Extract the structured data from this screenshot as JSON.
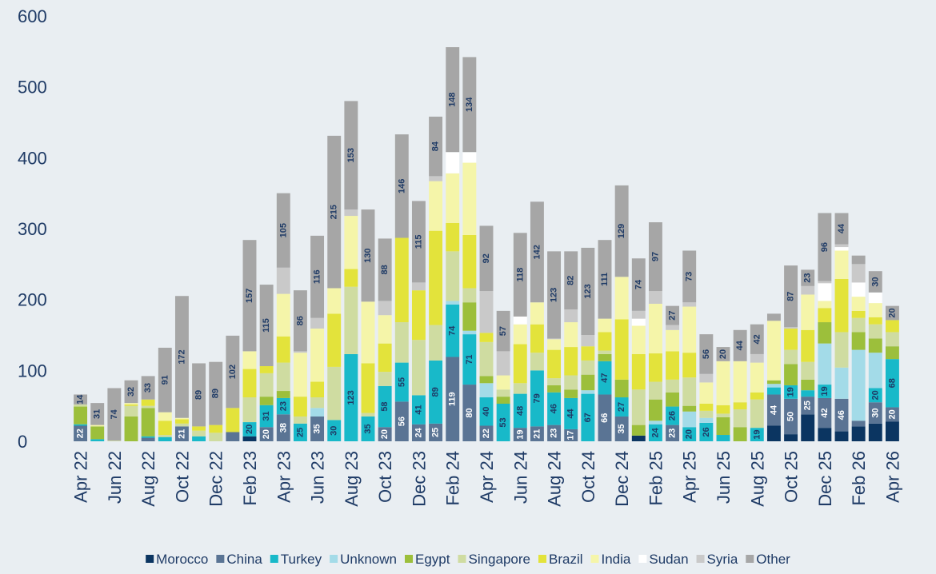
{
  "chart_data": {
    "type": "stacked_bar",
    "categories": [
      "Apr 22",
      null,
      "Jun 22",
      null,
      "Aug 22",
      null,
      "Oct 22",
      null,
      "Dec 22",
      null,
      "Feb 23",
      null,
      "Apr 23",
      null,
      "Jun 23",
      null,
      "Aug 23",
      null,
      "Oct 23",
      null,
      "Dec 23",
      null,
      "Feb 24",
      null,
      "Apr 24",
      null,
      "Jun 24",
      null,
      "Aug 24",
      null,
      "Oct 24",
      null,
      "Dec 24",
      null,
      "Feb 25",
      null,
      "Apr 25",
      null,
      "Jun 25",
      null,
      "Aug 25",
      null,
      "Oct 25",
      null,
      "Dec 25",
      null,
      "Feb 26",
      null,
      "Apr 26"
    ],
    "ylim": [
      0,
      600
    ],
    "yticks": [
      0,
      100,
      200,
      300,
      400,
      500,
      600
    ],
    "grid": false,
    "legend": "bottom",
    "series": [
      {
        "name": "Morocco",
        "color": "#0b3561",
        "data_labels": false,
        "values": [
          0,
          0,
          0,
          0,
          0,
          0,
          0,
          0,
          0,
          0,
          7,
          0,
          0,
          0,
          0,
          0,
          0,
          0,
          0,
          0,
          0,
          0,
          0,
          0,
          0,
          0,
          0,
          0,
          0,
          0,
          0,
          0,
          0,
          8,
          0,
          0,
          0,
          0,
          0,
          0,
          0,
          22,
          10,
          38,
          19,
          14,
          21,
          25,
          28
        ]
      },
      {
        "name": "China",
        "color": "#5a7494",
        "data_labels": true,
        "values": [
          22,
          0,
          0,
          0,
          5,
          0,
          21,
          0,
          0,
          13,
          0,
          20,
          38,
          0,
          35,
          0,
          0,
          0,
          20,
          56,
          24,
          25,
          119,
          80,
          22,
          0,
          19,
          21,
          23,
          17,
          0,
          66,
          35,
          0,
          0,
          23,
          0,
          0,
          0,
          0,
          0,
          44,
          50,
          25,
          42,
          46,
          8,
          30,
          20
        ]
      },
      {
        "name": "Turkey",
        "color": "#18b9c9",
        "data_labels": true,
        "values": [
          2,
          3,
          0,
          0,
          2,
          6,
          0,
          7,
          0,
          0,
          20,
          31,
          23,
          25,
          0,
          30,
          123,
          35,
          58,
          55,
          41,
          89,
          74,
          71,
          40,
          53,
          48,
          79,
          46,
          44,
          67,
          47,
          27,
          0,
          24,
          26,
          20,
          26,
          9,
          0,
          19,
          10,
          19,
          9,
          19,
          0,
          0,
          20,
          68
        ]
      },
      {
        "name": "Unknown",
        "color": "#a3dbe8",
        "data_labels": false,
        "values": [
          0,
          0,
          0,
          0,
          0,
          0,
          0,
          0,
          0,
          0,
          0,
          0,
          0,
          0,
          12,
          0,
          0,
          0,
          0,
          0,
          0,
          0,
          5,
          5,
          20,
          0,
          0,
          0,
          0,
          0,
          5,
          0,
          0,
          0,
          5,
          0,
          22,
          7,
          0,
          0,
          0,
          5,
          0,
          0,
          58,
          44,
          100,
          50,
          0
        ]
      },
      {
        "name": "Egypt",
        "color": "#9cbf3b",
        "data_labels": false,
        "values": [
          25,
          18,
          0,
          35,
          40,
          0,
          0,
          0,
          0,
          0,
          0,
          12,
          10,
          0,
          0,
          0,
          0,
          0,
          0,
          0,
          0,
          0,
          0,
          40,
          10,
          10,
          0,
          0,
          10,
          12,
          22,
          10,
          25,
          15,
          30,
          20,
          8,
          0,
          25,
          20,
          0,
          5,
          30,
          15,
          30,
          0,
          25,
          20,
          18
        ]
      },
      {
        "name": "Singapore",
        "color": "#cfdca1",
        "data_labels": false,
        "values": [
          3,
          0,
          1,
          15,
          3,
          3,
          4,
          8,
          12,
          0,
          35,
          33,
          40,
          10,
          15,
          75,
          95,
          5,
          20,
          57,
          78,
          50,
          70,
          20,
          48,
          10,
          15,
          25,
          10,
          20,
          20,
          5,
          0,
          50,
          25,
          18,
          40,
          10,
          5,
          25,
          40,
          0,
          20,
          25,
          0,
          50,
          20,
          20,
          20
        ]
      },
      {
        "name": "Brazil",
        "color": "#e3e33b",
        "data_labels": false,
        "values": [
          0,
          0,
          0,
          2,
          9,
          20,
          6,
          6,
          11,
          34,
          40,
          10,
          37,
          28,
          22,
          75,
          25,
          70,
          40,
          119,
          70,
          133,
          40,
          75,
          13,
          0,
          55,
          40,
          40,
          40,
          20,
          26,
          85,
          50,
          40,
          40,
          35,
          10,
          12,
          10,
          10,
          0,
          30,
          45,
          20,
          75,
          10,
          10,
          17
        ]
      },
      {
        "name": "India",
        "color": "#f5f5a9",
        "data_labels": false,
        "values": [
          0,
          2,
          0,
          2,
          0,
          12,
          2,
          0,
          0,
          0,
          25,
          0,
          60,
          62,
          75,
          36,
          75,
          87,
          40,
          0,
          0,
          70,
          70,
          102,
          0,
          20,
          28,
          31,
          15,
          35,
          0,
          19,
          60,
          40,
          70,
          30,
          65,
          30,
          62,
          58,
          42,
          84,
          0,
          50,
          10,
          40,
          20,
          20,
          0
        ]
      },
      {
        "name": "Sudan",
        "color": "#ffffff",
        "data_labels": false,
        "values": [
          0,
          0,
          0,
          0,
          0,
          0,
          0,
          0,
          0,
          0,
          0,
          0,
          0,
          0,
          0,
          0,
          0,
          0,
          0,
          0,
          0,
          0,
          30,
          15,
          0,
          0,
          11,
          0,
          0,
          0,
          0,
          0,
          0,
          10,
          0,
          0,
          0,
          0,
          0,
          0,
          0,
          0,
          0,
          0,
          25,
          5,
          20,
          15,
          0
        ]
      },
      {
        "name": "Syria",
        "color": "#c9c9c9",
        "data_labels": false,
        "values": [
          0,
          0,
          0,
          0,
          0,
          0,
          0,
          0,
          0,
          0,
          0,
          0,
          37,
          2,
          15,
          0,
          9,
          0,
          20,
          0,
          11,
          7,
          0,
          0,
          59,
          34,
          0,
          0,
          1,
          18,
          16,
          0,
          0,
          11,
          18,
          7,
          6,
          12,
          0,
          0,
          12,
          0,
          2,
          12,
          3,
          4,
          26,
          0,
          0
        ]
      },
      {
        "name": "Other",
        "color": "#a6a6a6",
        "data_labels": true,
        "values": [
          14,
          31,
          74,
          32,
          33,
          91,
          172,
          89,
          89,
          102,
          157,
          115,
          105,
          86,
          116,
          215,
          153,
          130,
          88,
          146,
          115,
          84,
          148,
          134,
          92,
          57,
          118,
          142,
          123,
          82,
          123,
          111,
          129,
          74,
          97,
          27,
          73,
          56,
          20,
          44,
          42,
          10,
          87,
          23,
          96,
          44,
          12,
          30,
          20
        ]
      }
    ]
  }
}
